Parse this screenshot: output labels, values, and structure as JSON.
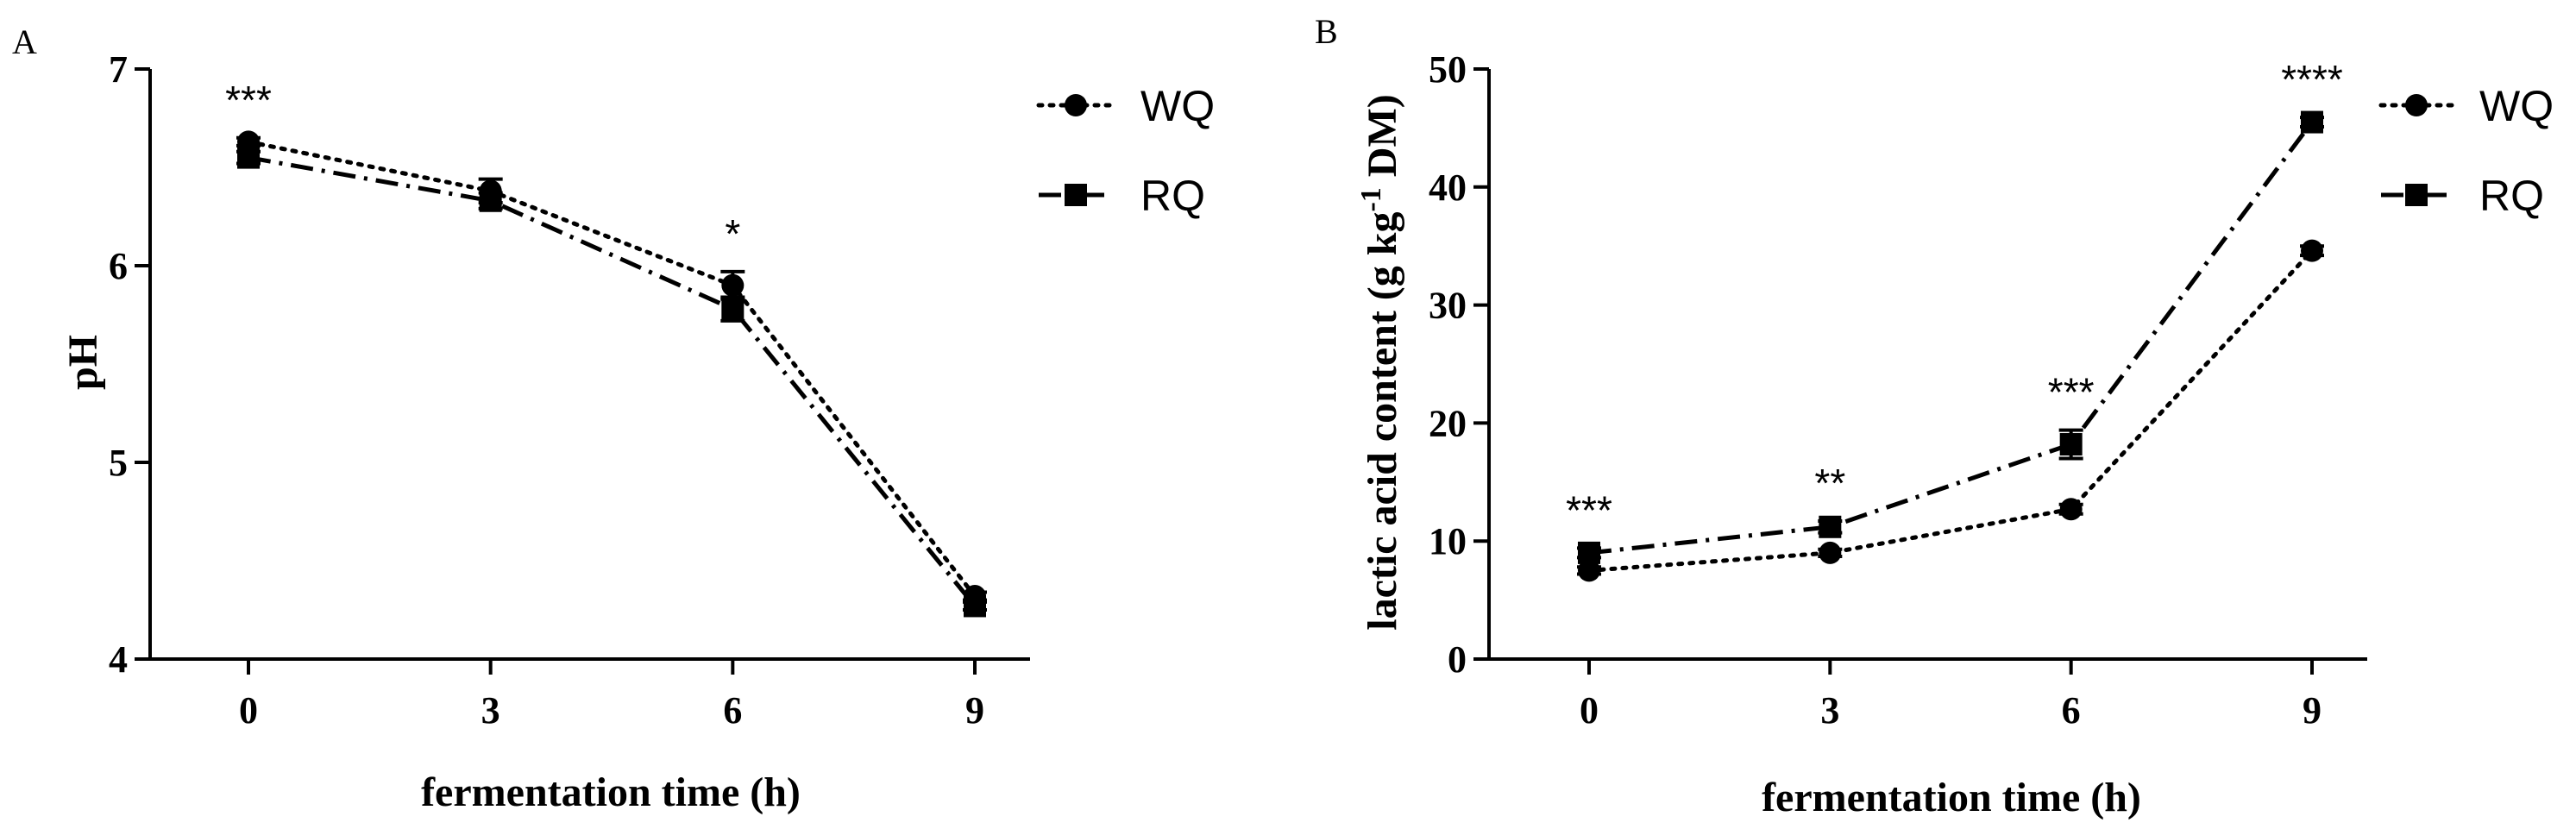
{
  "chart_data": [
    {
      "panel_label": "A",
      "type": "line",
      "xlabel": "fermentation time (h)",
      "ylabel": "pH",
      "x": [
        0,
        3,
        6,
        9
      ],
      "x_ticks": [
        "0",
        "3",
        "6",
        "9"
      ],
      "y_ticks": [
        "4",
        "5",
        "6",
        "7"
      ],
      "xlim": [
        0,
        9
      ],
      "ylim": [
        4,
        7
      ],
      "series": [
        {
          "name": "WQ",
          "marker": "circle",
          "line": "dotted",
          "values": [
            6.63,
            6.38,
            5.9,
            4.32
          ],
          "errors": [
            0.02,
            0.06,
            0.07,
            0.02
          ]
        },
        {
          "name": "RQ",
          "marker": "square",
          "line": "dash-dot",
          "values": [
            6.55,
            6.33,
            5.78,
            4.27
          ],
          "errors": [
            0.03,
            0.04,
            0.06,
            0.02
          ]
        }
      ],
      "annotations": [
        {
          "x": 0,
          "text": "***"
        },
        {
          "x": 6,
          "text": "*"
        }
      ],
      "legend_placement": "top-right",
      "grid": false
    },
    {
      "panel_label": "B",
      "type": "line",
      "xlabel": "fermentation time (h)",
      "ylabel_parts": [
        "lactic acid content (g kg",
        "-1",
        " DM)"
      ],
      "x": [
        0,
        3,
        6,
        9
      ],
      "x_ticks": [
        "0",
        "3",
        "6",
        "9"
      ],
      "y_ticks": [
        "0",
        "10",
        "20",
        "30",
        "40",
        "50"
      ],
      "xlim": [
        0,
        9
      ],
      "ylim": [
        0,
        50
      ],
      "series": [
        {
          "name": "WQ",
          "marker": "circle",
          "line": "dotted",
          "values": [
            7.5,
            9.0,
            12.7,
            34.6
          ],
          "errors": [
            0.3,
            0.3,
            0.4,
            0.4
          ]
        },
        {
          "name": "RQ",
          "marker": "square",
          "line": "dash-dot",
          "values": [
            9.0,
            11.2,
            18.2,
            45.5
          ],
          "errors": [
            0.4,
            0.5,
            1.2,
            0.4
          ]
        }
      ],
      "annotations": [
        {
          "x": 0,
          "text": "***"
        },
        {
          "x": 3,
          "text": "**"
        },
        {
          "x": 6,
          "text": "***"
        },
        {
          "x": 9,
          "text": "****"
        }
      ],
      "legend_placement": "top-right",
      "grid": false
    }
  ]
}
